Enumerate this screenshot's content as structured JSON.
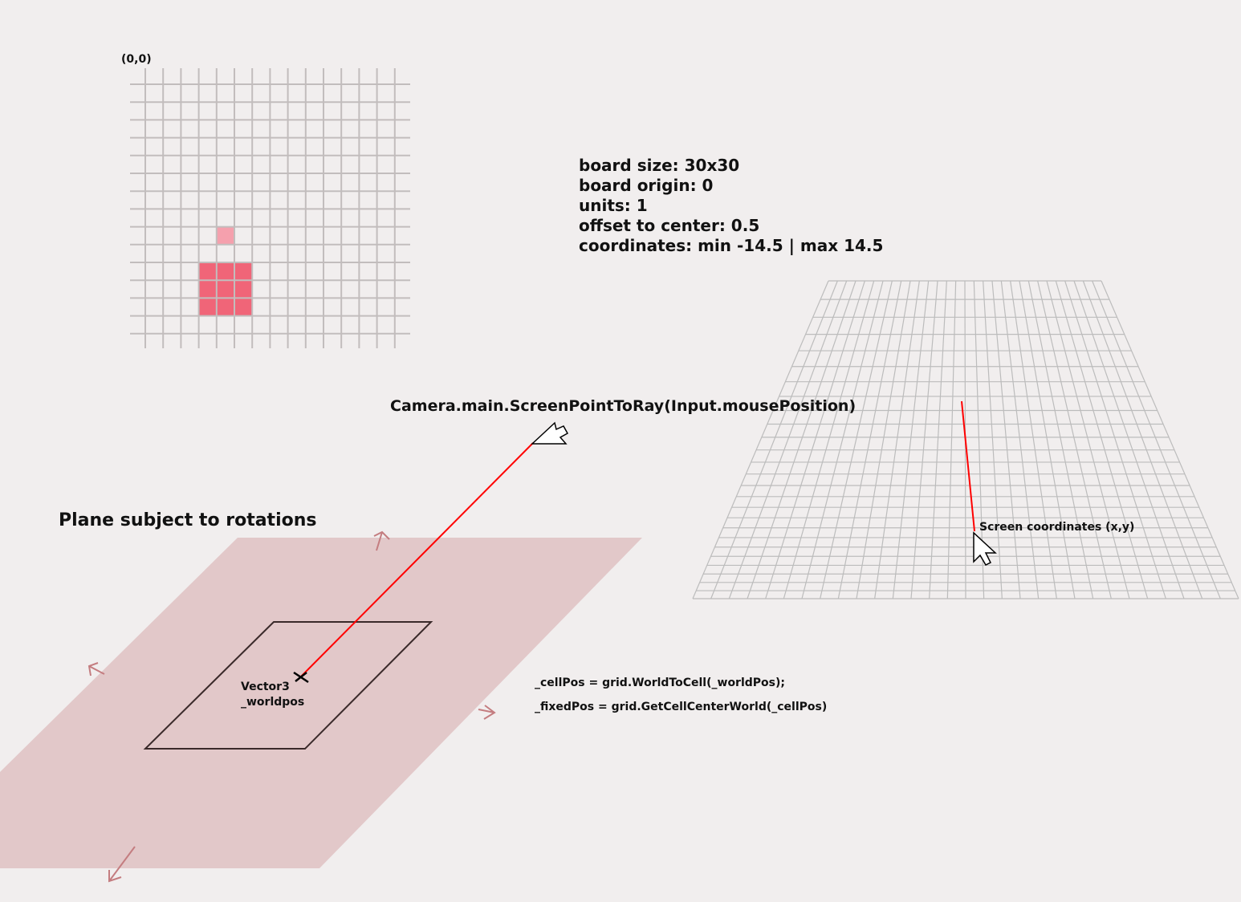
{
  "grid2d": {
    "origin_label": "(0,0)",
    "highlight_color": "#f06578",
    "small_cell_color": "#f5a0ad",
    "grid_color": "#c2bdbd"
  },
  "info": {
    "lines": [
      "board size: 30x30",
      "board origin: 0",
      "units: 1",
      "offset to center: 0.5",
      "coordinates: min -14.5 | max 14.5"
    ]
  },
  "ray": {
    "label": "Camera.main.ScreenPointToRay(Input.mousePosition)",
    "color": "#ff0000"
  },
  "plane": {
    "title": "Plane subject to rotations",
    "fill_color": "#e2c8c9",
    "arrow_color": "#c47d80",
    "vector_label_line1": "Vector3",
    "vector_label_line2": "_worldpos"
  },
  "code": {
    "line1": "_cellPos = grid.WorldToCell(_worldPos);",
    "line2": "_fixedPos = grid.GetCellCenterWorld(_cellPos)"
  },
  "perspective_grid": {
    "screen_label": "Screen coordinates (x,y)",
    "cells": 30
  },
  "icons": [
    "cursor-icon",
    "cursor-icon",
    "crosshair-icon",
    "rotation-arrow-icon"
  ]
}
